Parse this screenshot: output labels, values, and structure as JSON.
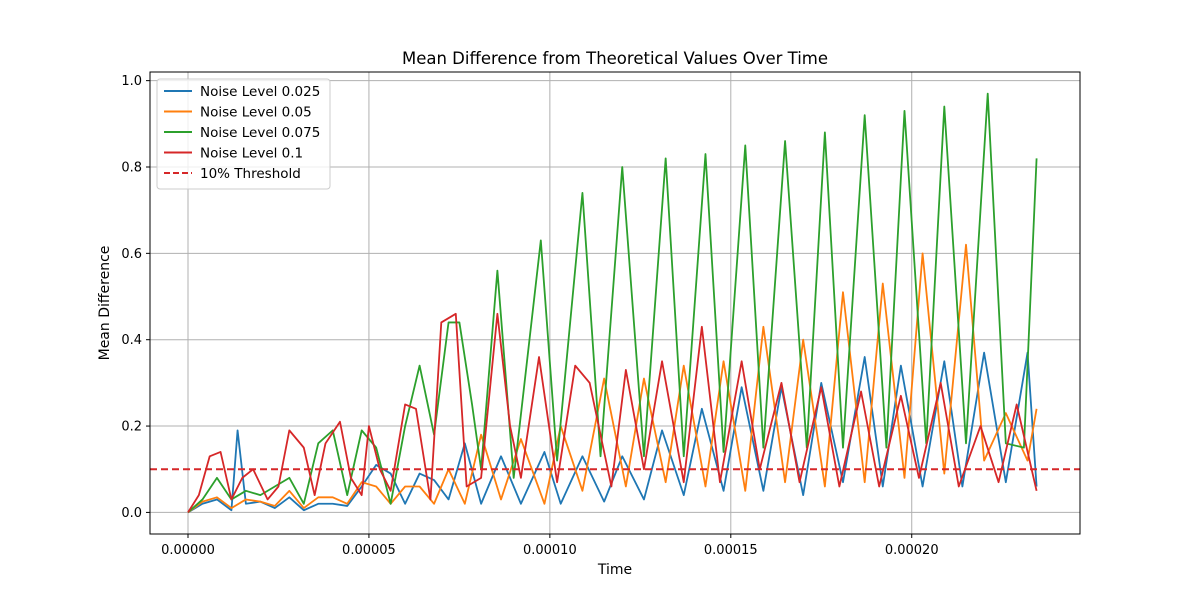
{
  "chart_data": {
    "type": "line",
    "title": "Mean Difference from Theoretical Values Over Time",
    "xlabel": "Time",
    "ylabel": "Mean Difference",
    "xlim": [
      -1.05e-05,
      0.0002465
    ],
    "ylim": [
      -0.05,
      1.02
    ],
    "xticks": [
      0.0,
      5e-05,
      0.0001,
      0.00015,
      0.0002
    ],
    "xtick_labels": [
      "0.00000",
      "0.00005",
      "0.00010",
      "0.00015",
      "0.00020"
    ],
    "yticks": [
      0.0,
      0.2,
      0.4,
      0.6,
      0.8,
      1.0
    ],
    "ytick_labels": [
      "0.0",
      "0.2",
      "0.4",
      "0.6",
      "0.8",
      "1.0"
    ],
    "grid": true,
    "legend_position": "top-left",
    "threshold": {
      "name": "10% Threshold",
      "value": 0.1,
      "color": "#d62728",
      "style": "dashed"
    },
    "series": [
      {
        "name": "Noise Level 0.025",
        "color": "#1f77b4",
        "x": [
          0,
          4e-06,
          8e-06,
          1.2e-05,
          1.6e-05,
          2e-05,
          2.4e-05,
          2.8e-05,
          3.2e-05,
          3.6e-05,
          4e-05,
          4.4e-05,
          4.8e-05,
          5.2e-05,
          5.6e-05,
          6e-05,
          6.4e-05,
          6.8e-05,
          7.2e-05,
          7.65e-05,
          8.1e-05,
          8.65e-05,
          9.2e-05,
          9.85e-05,
          0.000103,
          0.000109,
          0.000115,
          0.00012,
          0.000126,
          0.000131,
          1.37e-05,
          0.000137,
          0.000142,
          0.000148,
          0.000153,
          0.000159,
          0.000164,
          0.00017,
          0.000175,
          0.000181,
          0.000187,
          0.000192,
          0.000197,
          0.000203,
          0.000209,
          0.000214,
          0.00022,
          0.000226,
          0.000232,
          0.0002345
        ],
        "y": [
          0,
          0.02,
          0.03,
          0.005,
          0.02,
          0.025,
          0.01,
          0.035,
          0.005,
          0.02,
          0.02,
          0.015,
          0.06,
          0.11,
          0.09,
          0.02,
          0.09,
          0.075,
          0.03,
          0.16,
          0.02,
          0.13,
          0.02,
          0.14,
          0.02,
          0.13,
          0.025,
          0.13,
          0.03,
          0.19,
          0.19,
          0.04,
          0.24,
          0.05,
          0.29,
          0.05,
          0.29,
          0.04,
          0.3,
          0.07,
          0.36,
          0.06,
          0.34,
          0.06,
          0.35,
          0.06,
          0.37,
          0.07,
          0.37,
          0.06
        ]
      },
      {
        "name": "Noise Level 0.05",
        "color": "#ff7f0e",
        "x": [
          0,
          4e-06,
          8e-06,
          1.2e-05,
          1.6e-05,
          2e-05,
          2.4e-05,
          2.8e-05,
          3.2e-05,
          3.6e-05,
          4e-05,
          4.4e-05,
          4.8e-05,
          5.2e-05,
          5.6e-05,
          6e-05,
          6.4e-05,
          6.8e-05,
          7.2e-05,
          7.65e-05,
          8.1e-05,
          8.65e-05,
          9.2e-05,
          9.85e-05,
          0.000103,
          0.000109,
          0.000115,
          0.000121,
          0.000126,
          0.000132,
          0.000137,
          0.000143,
          0.000148,
          0.000154,
          0.000159,
          0.000165,
          0.00017,
          0.000176,
          0.000181,
          0.000187,
          0.000192,
          0.000198,
          0.000203,
          0.000209,
          0.000215,
          0.00022,
          0.000226,
          0.000232,
          0.0002345
        ],
        "y": [
          0,
          0.025,
          0.035,
          0.01,
          0.03,
          0.025,
          0.015,
          0.05,
          0.01,
          0.035,
          0.035,
          0.02,
          0.07,
          0.06,
          0.02,
          0.06,
          0.06,
          0.02,
          0.1,
          0.02,
          0.18,
          0.03,
          0.17,
          0.02,
          0.2,
          0.05,
          0.31,
          0.06,
          0.31,
          0.07,
          0.34,
          0.06,
          0.35,
          0.05,
          0.43,
          0.07,
          0.4,
          0.06,
          0.51,
          0.07,
          0.53,
          0.08,
          0.6,
          0.09,
          0.62,
          0.12,
          0.23,
          0.12,
          0.24
        ]
      },
      {
        "name": "Noise Level 0.075",
        "color": "#2ca02c",
        "x": [
          0,
          4e-06,
          8e-06,
          1.2e-05,
          1.6e-05,
          2e-05,
          2.4e-05,
          2.8e-05,
          3.2e-05,
          3.6e-05,
          4e-05,
          4.4e-05,
          4.8e-05,
          5.2e-05,
          5.6e-05,
          6e-05,
          6.4e-05,
          6.8e-05,
          7.2e-05,
          7.5e-05,
          7.85e-05,
          8.1e-05,
          8.55e-05,
          9e-05,
          9.75e-05,
          0.000102,
          0.000109,
          0.000114,
          0.00012,
          0.000126,
          0.000132,
          0.000137,
          0.000143,
          0.000148,
          0.000154,
          0.000159,
          0.000165,
          0.000171,
          0.000176,
          0.000181,
          0.000187,
          0.000193,
          0.000198,
          0.000204,
          0.000209,
          0.000215,
          0.000221,
          0.000226,
          0.000231,
          0.0002345
        ],
        "y": [
          0,
          0.03,
          0.08,
          0.03,
          0.05,
          0.04,
          0.06,
          0.08,
          0.02,
          0.16,
          0.19,
          0.04,
          0.19,
          0.15,
          0.02,
          0.2,
          0.34,
          0.18,
          0.44,
          0.44,
          0.25,
          0.1,
          0.56,
          0.08,
          0.63,
          0.12,
          0.74,
          0.13,
          0.8,
          0.13,
          0.82,
          0.13,
          0.83,
          0.14,
          0.85,
          0.15,
          0.86,
          0.15,
          0.88,
          0.15,
          0.92,
          0.15,
          0.93,
          0.16,
          0.94,
          0.16,
          0.97,
          0.16,
          0.15,
          0.82
        ]
      },
      {
        "name": "Noise Level 0.1",
        "color": "#d62728",
        "x": [
          0,
          3e-06,
          6e-06,
          9e-06,
          1.2e-05,
          1.5e-05,
          1.8e-05,
          2.2e-05,
          2.5e-05,
          2.8e-05,
          3.2e-05,
          3.5e-05,
          3.8e-05,
          4.2e-05,
          4.5e-05,
          4.8e-05,
          5e-05,
          5.3e-05,
          5.6e-05,
          6e-05,
          6.3e-05,
          6.7e-05,
          7e-05,
          7.4e-05,
          7.7e-05,
          8.1e-05,
          8.55e-05,
          8.9e-05,
          9.2e-05,
          9.7e-05,
          0.000102,
          0.000107,
          0.000111,
          0.000117,
          0.000121,
          0.000126,
          0.000131,
          0.000137,
          0.000142,
          0.000147,
          0.000153,
          0.000158,
          0.000164,
          0.000169,
          0.000175,
          0.00018,
          0.000186,
          0.000191,
          0.000197,
          0.000202,
          0.000208,
          0.000213,
          0.000219,
          0.000224,
          0.000229,
          0.0002345
        ],
        "y": [
          0,
          0.04,
          0.13,
          0.14,
          0.03,
          0.08,
          0.1,
          0.03,
          0.06,
          0.19,
          0.15,
          0.04,
          0.16,
          0.21,
          0.08,
          0.04,
          0.2,
          0.1,
          0.05,
          0.25,
          0.24,
          0.03,
          0.44,
          0.46,
          0.06,
          0.08,
          0.46,
          0.2,
          0.08,
          0.36,
          0.07,
          0.34,
          0.3,
          0.06,
          0.33,
          0.1,
          0.35,
          0.07,
          0.43,
          0.07,
          0.35,
          0.1,
          0.3,
          0.07,
          0.29,
          0.06,
          0.28,
          0.06,
          0.27,
          0.08,
          0.3,
          0.06,
          0.2,
          0.07,
          0.25,
          0.05
        ]
      }
    ]
  }
}
